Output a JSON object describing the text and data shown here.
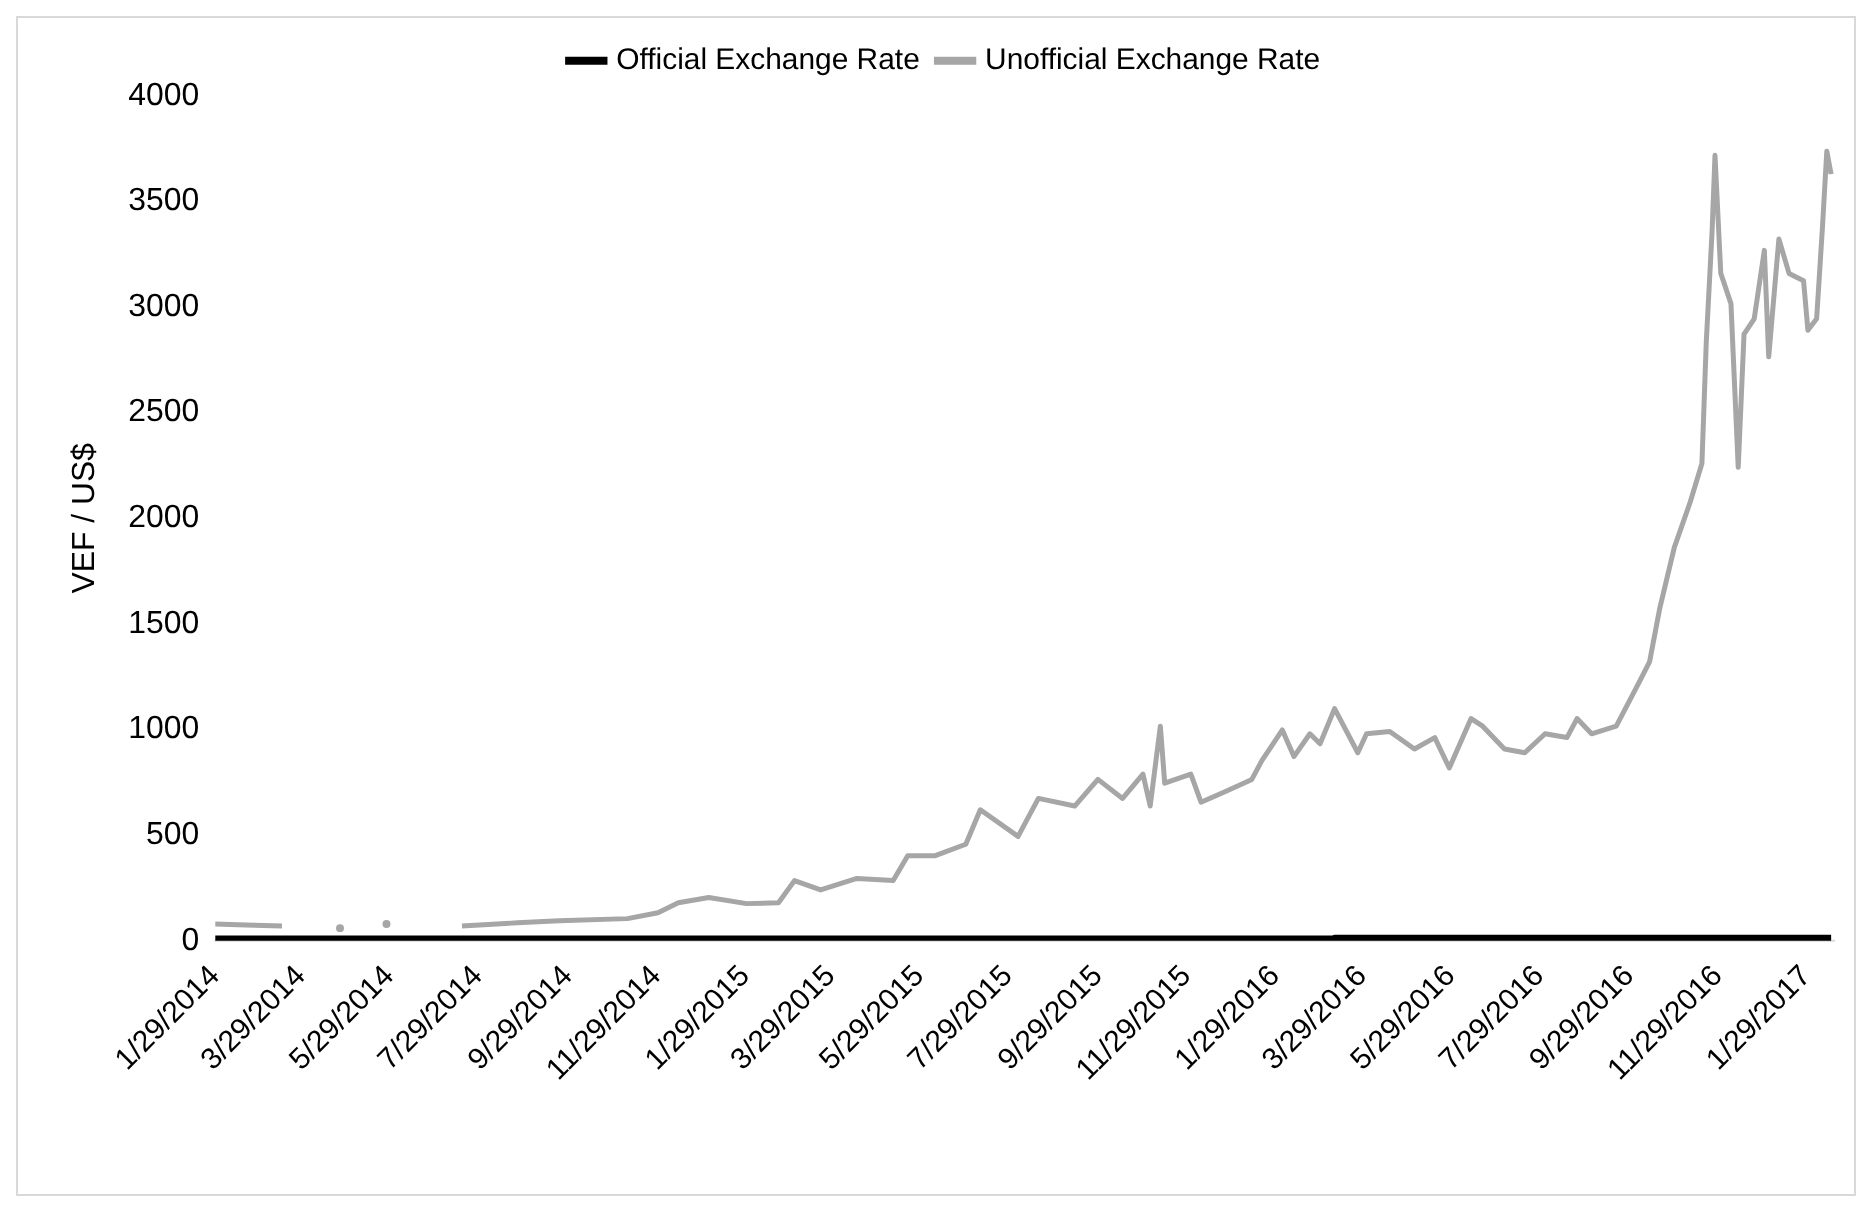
{
  "chart_data": {
    "type": "line",
    "ylabel": "VEF / US$",
    "legend": "top",
    "grid": false,
    "marker": "none",
    "line_style": "solid",
    "xlim": [
      "2014-01-29",
      "2017-02-17"
    ],
    "ylim": [
      0,
      4000
    ],
    "yticks": [
      0,
      500,
      1000,
      1500,
      2000,
      2500,
      3000,
      3500,
      4000
    ],
    "xticks": [
      {
        "value": "2014-01-29",
        "label": "1/29/2014"
      },
      {
        "value": "2014-03-29",
        "label": "3/29/2014"
      },
      {
        "value": "2014-05-29",
        "label": "5/29/2014"
      },
      {
        "value": "2014-07-29",
        "label": "7/29/2014"
      },
      {
        "value": "2014-09-29",
        "label": "9/29/2014"
      },
      {
        "value": "2014-11-29",
        "label": "11/29/2014"
      },
      {
        "value": "2015-01-29",
        "label": "1/29/2015"
      },
      {
        "value": "2015-03-29",
        "label": "3/29/2015"
      },
      {
        "value": "2015-05-29",
        "label": "5/29/2015"
      },
      {
        "value": "2015-07-29",
        "label": "7/29/2015"
      },
      {
        "value": "2015-09-29",
        "label": "9/29/2015"
      },
      {
        "value": "2015-11-29",
        "label": "11/29/2015"
      },
      {
        "value": "2016-01-29",
        "label": "1/29/2016"
      },
      {
        "value": "2016-03-29",
        "label": "3/29/2016"
      },
      {
        "value": "2016-05-29",
        "label": "5/29/2016"
      },
      {
        "value": "2016-07-29",
        "label": "7/29/2016"
      },
      {
        "value": "2016-09-29",
        "label": "9/29/2016"
      },
      {
        "value": "2016-11-29",
        "label": "11/29/2016"
      },
      {
        "value": "2017-01-29",
        "label": "1/29/2017"
      }
    ],
    "series": [
      {
        "name": "Official Exchange Rate",
        "color": "#000000",
        "x": [
          "2014-01-29",
          "2016-03-09",
          "2016-03-10",
          "2017-02-15"
        ],
        "values": [
          6.3,
          6.3,
          10,
          10
        ]
      },
      {
        "name": "Unofficial Exchange Rate",
        "color": "#a6a6a6",
        "x": [
          "2014-01-29",
          "2014-02-19",
          "2014-03-16",
          "2014-04-01",
          "2014-04-25",
          "2014-05-10",
          "2014-05-27",
          "2014-06-20",
          "2014-07-18",
          "2014-08-25",
          "2014-09-23",
          "2014-11-09",
          "2014-11-30",
          "2014-12-14",
          "2015-01-04",
          "2015-01-30",
          "2015-02-21",
          "2015-03-04",
          "2015-03-22",
          "2015-04-16",
          "2015-05-11",
          "2015-05-21",
          "2015-06-09",
          "2015-06-30",
          "2015-07-10",
          "2015-08-05",
          "2015-08-19",
          "2015-09-13",
          "2015-09-29",
          "2015-10-16",
          "2015-10-30",
          "2015-11-04",
          "2015-11-11",
          "2015-11-14",
          "2015-12-02",
          "2015-12-09",
          "2015-12-27",
          "2016-01-13",
          "2016-01-20",
          "2016-02-03",
          "2016-02-11",
          "2016-02-22",
          "2016-02-29",
          "2016-03-10",
          "2016-03-26",
          "2016-04-01",
          "2016-04-17",
          "2016-05-04",
          "2016-05-18",
          "2016-05-28",
          "2016-06-12",
          "2016-06-20",
          "2016-07-05",
          "2016-07-19",
          "2016-08-02",
          "2016-08-17",
          "2016-08-24",
          "2016-09-03",
          "2016-09-20",
          "2016-10-05",
          "2016-10-13",
          "2016-10-20",
          "2016-10-30",
          "2016-11-10",
          "2016-11-18",
          "2016-11-21",
          "2016-11-25",
          "2016-11-27",
          "2016-12-01",
          "2016-12-08",
          "2016-12-13",
          "2016-12-17",
          "2016-12-24",
          "2016-12-31",
          "2017-01-03",
          "2017-01-10",
          "2017-01-17",
          "2017-01-27",
          "2017-01-30",
          "2017-02-05",
          "2017-02-09",
          "2017-02-12",
          "2017-02-15"
        ],
        "values": [
          80,
          75,
          70,
          null,
          60,
          null,
          80,
          null,
          70,
          85,
          95,
          105,
          133,
          180,
          205,
          176,
          180,
          285,
          241,
          295,
          285,
          403,
          403,
          457,
          620,
          494,
          674,
          638,
          764,
          674,
          789,
          638,
          1016,
          746,
          789,
          656,
          710,
          764,
          854,
          998,
          872,
          980,
          933,
          1099,
          890,
          980,
          991,
          908,
          962,
          818,
          1052,
          1016,
          908,
          890,
          980,
          962,
          1052,
          980,
          1016,
          1214,
          1322,
          1575,
          1862,
          2078,
          2259,
          2835,
          3358,
          3718,
          3159,
          3016,
          2241,
          2872,
          2944,
          3268,
          2764,
          3322,
          3159,
          3124,
          2890,
          2944,
          3376,
          3737,
          3629
        ]
      }
    ]
  }
}
